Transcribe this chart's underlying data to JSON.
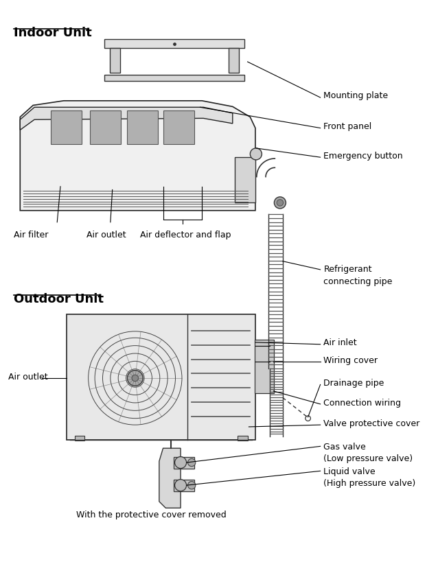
{
  "title_indoor": "Indoor Unit",
  "title_outdoor": "Outdoor Unit",
  "bg_color": "#ffffff",
  "text_color": "#000000",
  "labels": {
    "mounting_plate": "Mounting plate",
    "front_panel": "Front panel",
    "emergency_button": "Emergency button",
    "air_filter": "Air filter",
    "air_outlet_indoor": "Air outlet",
    "air_deflector": "Air deflector and flap",
    "refrigerant_pipe": "Refrigerant\nconnecting pipe",
    "air_inlet": "Air inlet",
    "wiring_cover": "Wiring cover",
    "drainage_pipe": "Drainage pipe",
    "connection_wiring": "Connection wiring",
    "valve_protective": "Valve protective cover",
    "gas_valve": "Gas valve\n(Low pressure valve)",
    "liquid_valve": "Liquid valve\n(High pressure valve)",
    "air_outlet_outdoor": "Air outlet",
    "caption": "With the protective cover removed"
  },
  "font_size_title": 13,
  "font_size_label": 9,
  "font_size_caption": 9
}
